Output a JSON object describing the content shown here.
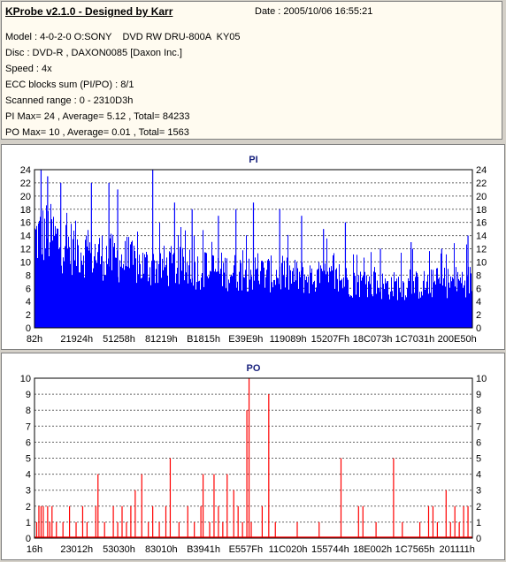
{
  "info": {
    "title": "KProbe v2.1.0 - Designed by Karr",
    "date": "Date : 2005/10/06 16:55:21",
    "lines": [
      "Model : 4-0-2-0 O:SONY    DVD RW DRU-800A  KY05",
      "Disc : DVD-R , DAXON0085 [Daxon Inc.]",
      "Speed : 4x",
      "ECC blocks sum (PI/PO) : 8/1",
      "Scanned range : 0 - 2310D3h",
      "PI Max= 24 , Average= 5.12 , Total= 84233",
      "PO Max= 10 , Average= 0.01 , Total= 1563"
    ]
  },
  "chart_data": [
    {
      "type": "bar",
      "title": "PI",
      "color": "#0000ff",
      "ylim": [
        0,
        24
      ],
      "yticks": [
        0,
        2,
        4,
        6,
        8,
        10,
        12,
        14,
        16,
        18,
        20,
        22,
        24
      ],
      "xticklabels": [
        "82h",
        "21924h",
        "51258h",
        "81219h",
        "B1815h",
        "E39E9h",
        "119089h",
        "15207Fh",
        "18C073h",
        "1C7031h",
        "200E50h"
      ],
      "grid": true,
      "profile": [
        [
          0,
          16
        ],
        [
          0.03,
          17
        ],
        [
          0.06,
          15
        ],
        [
          0.1,
          14
        ],
        [
          0.15,
          13
        ],
        [
          0.2,
          12
        ],
        [
          0.25,
          11
        ],
        [
          0.3,
          11
        ],
        [
          0.35,
          10.5
        ],
        [
          0.45,
          10
        ],
        [
          0.55,
          9.5
        ],
        [
          0.62,
          9
        ],
        [
          0.7,
          8.5
        ],
        [
          0.75,
          8
        ],
        [
          0.8,
          7.5
        ],
        [
          0.86,
          7.5
        ],
        [
          0.92,
          8
        ],
        [
          1.0,
          8.5
        ]
      ],
      "peaks": [
        {
          "x": 0.015,
          "y": 24
        },
        {
          "x": 0.03,
          "y": 23
        },
        {
          "x": 0.06,
          "y": 22
        },
        {
          "x": 0.13,
          "y": 22
        },
        {
          "x": 0.17,
          "y": 22
        },
        {
          "x": 0.19,
          "y": 21
        },
        {
          "x": 0.27,
          "y": 24
        },
        {
          "x": 0.32,
          "y": 19
        },
        {
          "x": 0.36,
          "y": 18
        },
        {
          "x": 0.42,
          "y": 17
        },
        {
          "x": 0.46,
          "y": 18
        },
        {
          "x": 0.5,
          "y": 19
        },
        {
          "x": 0.56,
          "y": 18
        },
        {
          "x": 0.61,
          "y": 17
        },
        {
          "x": 0.66,
          "y": 15
        },
        {
          "x": 0.71,
          "y": 16
        },
        {
          "x": 0.79,
          "y": 12
        },
        {
          "x": 0.86,
          "y": 13
        },
        {
          "x": 0.93,
          "y": 12
        },
        {
          "x": 0.99,
          "y": 14
        }
      ]
    },
    {
      "type": "bar",
      "title": "PO",
      "color": "#ff0000",
      "ylim": [
        0,
        10
      ],
      "yticks": [
        0,
        1,
        2,
        3,
        4,
        5,
        6,
        7,
        8,
        9,
        10
      ],
      "xticklabels": [
        "16h",
        "23012h",
        "53030h",
        "83010h",
        "B3941h",
        "E557Fh",
        "11C020h",
        "155744h",
        "18E002h",
        "1C7565h",
        "201111h"
      ],
      "grid": true,
      "points": [
        {
          "x": 0.005,
          "y": 1
        },
        {
          "x": 0.01,
          "y": 2
        },
        {
          "x": 0.015,
          "y": 2
        },
        {
          "x": 0.02,
          "y": 2
        },
        {
          "x": 0.03,
          "y": 2
        },
        {
          "x": 0.035,
          "y": 1
        },
        {
          "x": 0.04,
          "y": 2
        },
        {
          "x": 0.05,
          "y": 1
        },
        {
          "x": 0.065,
          "y": 1
        },
        {
          "x": 0.08,
          "y": 2
        },
        {
          "x": 0.095,
          "y": 1
        },
        {
          "x": 0.11,
          "y": 2
        },
        {
          "x": 0.12,
          "y": 1
        },
        {
          "x": 0.14,
          "y": 2
        },
        {
          "x": 0.145,
          "y": 4
        },
        {
          "x": 0.16,
          "y": 1
        },
        {
          "x": 0.18,
          "y": 2
        },
        {
          "x": 0.19,
          "y": 1
        },
        {
          "x": 0.2,
          "y": 2
        },
        {
          "x": 0.21,
          "y": 1
        },
        {
          "x": 0.22,
          "y": 2
        },
        {
          "x": 0.23,
          "y": 3
        },
        {
          "x": 0.245,
          "y": 4
        },
        {
          "x": 0.26,
          "y": 1
        },
        {
          "x": 0.27,
          "y": 2
        },
        {
          "x": 0.285,
          "y": 1
        },
        {
          "x": 0.3,
          "y": 2
        },
        {
          "x": 0.31,
          "y": 5
        },
        {
          "x": 0.33,
          "y": 1
        },
        {
          "x": 0.35,
          "y": 2
        },
        {
          "x": 0.365,
          "y": 1
        },
        {
          "x": 0.38,
          "y": 2
        },
        {
          "x": 0.385,
          "y": 4
        },
        {
          "x": 0.4,
          "y": 1
        },
        {
          "x": 0.41,
          "y": 4
        },
        {
          "x": 0.42,
          "y": 2
        },
        {
          "x": 0.43,
          "y": 1
        },
        {
          "x": 0.44,
          "y": 4
        },
        {
          "x": 0.455,
          "y": 3
        },
        {
          "x": 0.465,
          "y": 2
        },
        {
          "x": 0.475,
          "y": 1
        },
        {
          "x": 0.485,
          "y": 8
        },
        {
          "x": 0.49,
          "y": 10
        },
        {
          "x": 0.495,
          "y": 1
        },
        {
          "x": 0.52,
          "y": 2
        },
        {
          "x": 0.535,
          "y": 9
        },
        {
          "x": 0.55,
          "y": 1
        },
        {
          "x": 0.6,
          "y": 1
        },
        {
          "x": 0.65,
          "y": 1
        },
        {
          "x": 0.7,
          "y": 5
        },
        {
          "x": 0.74,
          "y": 2
        },
        {
          "x": 0.75,
          "y": 2
        },
        {
          "x": 0.78,
          "y": 1
        },
        {
          "x": 0.82,
          "y": 5
        },
        {
          "x": 0.84,
          "y": 1
        },
        {
          "x": 0.88,
          "y": 1
        },
        {
          "x": 0.9,
          "y": 2
        },
        {
          "x": 0.91,
          "y": 2
        },
        {
          "x": 0.92,
          "y": 1
        },
        {
          "x": 0.94,
          "y": 3
        },
        {
          "x": 0.95,
          "y": 1
        },
        {
          "x": 0.96,
          "y": 2
        },
        {
          "x": 0.97,
          "y": 1
        },
        {
          "x": 0.98,
          "y": 2
        },
        {
          "x": 0.99,
          "y": 2
        }
      ]
    }
  ]
}
